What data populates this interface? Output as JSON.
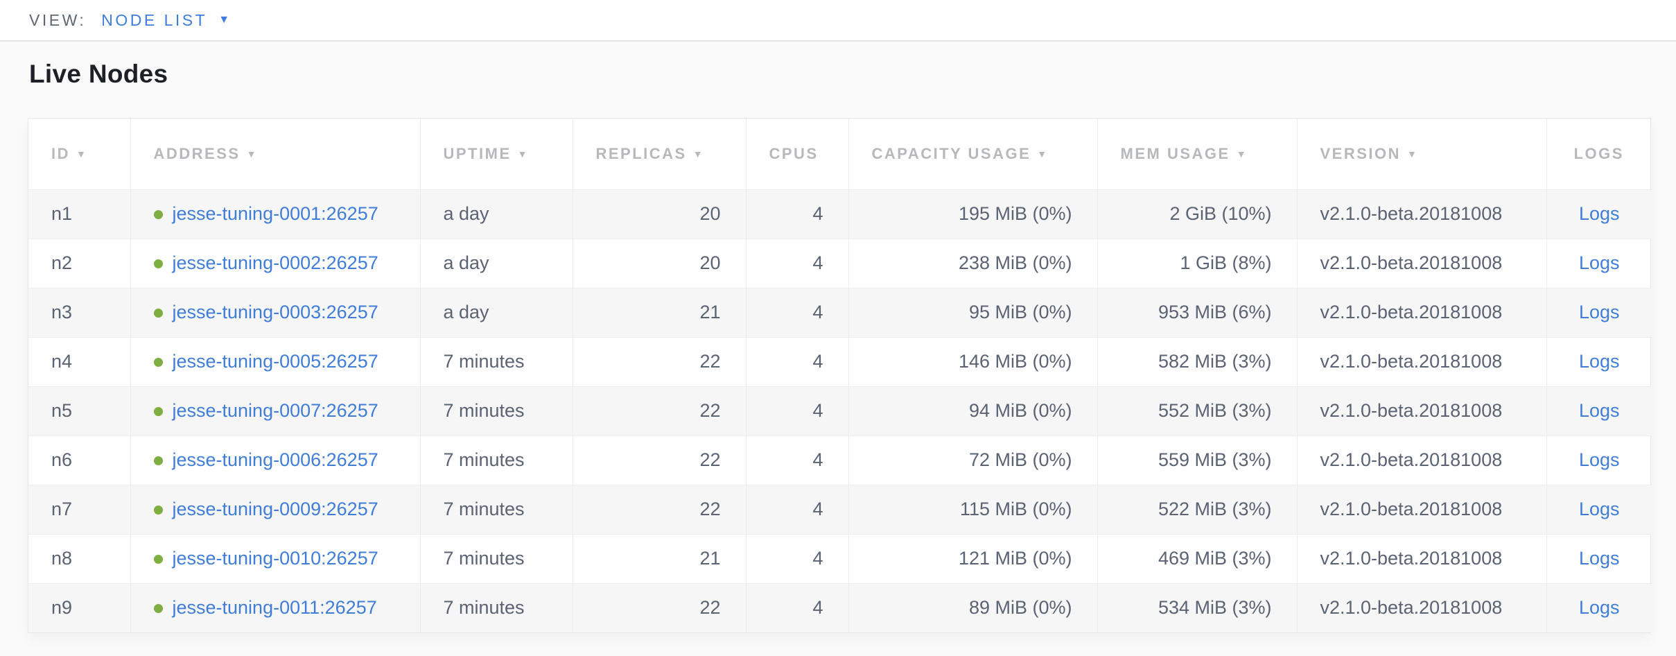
{
  "topbar": {
    "view_label": "VIEW:",
    "view_value": "NODE LIST"
  },
  "page": {
    "title": "Live Nodes"
  },
  "icons": {
    "caret_down": "▼",
    "sort_desc": "▼",
    "live_dot": "●"
  },
  "colors": {
    "accent_blue": "#3e7de0",
    "link_blue": "#3f7dd9",
    "live_dot_green": "#7eae3f",
    "header_text_gray": "#b6b8bb",
    "cell_text_slate": "#5a6374",
    "striped_row": "#f6f6f6"
  },
  "table": {
    "columns": [
      {
        "key": "id",
        "label": "ID",
        "sortable": true,
        "align": "left"
      },
      {
        "key": "address",
        "label": "ADDRESS",
        "sortable": true,
        "align": "left"
      },
      {
        "key": "uptime",
        "label": "UPTIME",
        "sortable": true,
        "align": "left"
      },
      {
        "key": "replicas",
        "label": "REPLICAS",
        "sortable": true,
        "align": "right"
      },
      {
        "key": "cpus",
        "label": "CPUS",
        "sortable": false,
        "align": "right"
      },
      {
        "key": "capacity_usage",
        "label": "CAPACITY USAGE",
        "sortable": true,
        "align": "right"
      },
      {
        "key": "mem_usage",
        "label": "MEM USAGE",
        "sortable": true,
        "align": "right"
      },
      {
        "key": "version",
        "label": "VERSION",
        "sortable": true,
        "align": "left"
      },
      {
        "key": "logs",
        "label": "LOGS",
        "sortable": false,
        "align": "center"
      }
    ],
    "rows": [
      {
        "id": "n1",
        "status": "live",
        "address": "jesse-tuning-0001:26257",
        "uptime": "a day",
        "replicas": "20",
        "cpus": "4",
        "capacity_usage": "195 MiB (0%)",
        "mem_usage": "2 GiB (10%)",
        "version": "v2.1.0-beta.20181008",
        "logs": "Logs"
      },
      {
        "id": "n2",
        "status": "live",
        "address": "jesse-tuning-0002:26257",
        "uptime": "a day",
        "replicas": "20",
        "cpus": "4",
        "capacity_usage": "238 MiB (0%)",
        "mem_usage": "1 GiB (8%)",
        "version": "v2.1.0-beta.20181008",
        "logs": "Logs"
      },
      {
        "id": "n3",
        "status": "live",
        "address": "jesse-tuning-0003:26257",
        "uptime": "a day",
        "replicas": "21",
        "cpus": "4",
        "capacity_usage": "95 MiB (0%)",
        "mem_usage": "953 MiB (6%)",
        "version": "v2.1.0-beta.20181008",
        "logs": "Logs"
      },
      {
        "id": "n4",
        "status": "live",
        "address": "jesse-tuning-0005:26257",
        "uptime": "7 minutes",
        "replicas": "22",
        "cpus": "4",
        "capacity_usage": "146 MiB (0%)",
        "mem_usage": "582 MiB (3%)",
        "version": "v2.1.0-beta.20181008",
        "logs": "Logs"
      },
      {
        "id": "n5",
        "status": "live",
        "address": "jesse-tuning-0007:26257",
        "uptime": "7 minutes",
        "replicas": "22",
        "cpus": "4",
        "capacity_usage": "94 MiB (0%)",
        "mem_usage": "552 MiB (3%)",
        "version": "v2.1.0-beta.20181008",
        "logs": "Logs"
      },
      {
        "id": "n6",
        "status": "live",
        "address": "jesse-tuning-0006:26257",
        "uptime": "7 minutes",
        "replicas": "22",
        "cpus": "4",
        "capacity_usage": "72 MiB (0%)",
        "mem_usage": "559 MiB (3%)",
        "version": "v2.1.0-beta.20181008",
        "logs": "Logs"
      },
      {
        "id": "n7",
        "status": "live",
        "address": "jesse-tuning-0009:26257",
        "uptime": "7 minutes",
        "replicas": "22",
        "cpus": "4",
        "capacity_usage": "115 MiB (0%)",
        "mem_usage": "522 MiB (3%)",
        "version": "v2.1.0-beta.20181008",
        "logs": "Logs"
      },
      {
        "id": "n8",
        "status": "live",
        "address": "jesse-tuning-0010:26257",
        "uptime": "7 minutes",
        "replicas": "21",
        "cpus": "4",
        "capacity_usage": "121 MiB (0%)",
        "mem_usage": "469 MiB (3%)",
        "version": "v2.1.0-beta.20181008",
        "logs": "Logs"
      },
      {
        "id": "n9",
        "status": "live",
        "address": "jesse-tuning-0011:26257",
        "uptime": "7 minutes",
        "replicas": "22",
        "cpus": "4",
        "capacity_usage": "89 MiB (0%)",
        "mem_usage": "534 MiB (3%)",
        "version": "v2.1.0-beta.20181008",
        "logs": "Logs"
      }
    ]
  }
}
